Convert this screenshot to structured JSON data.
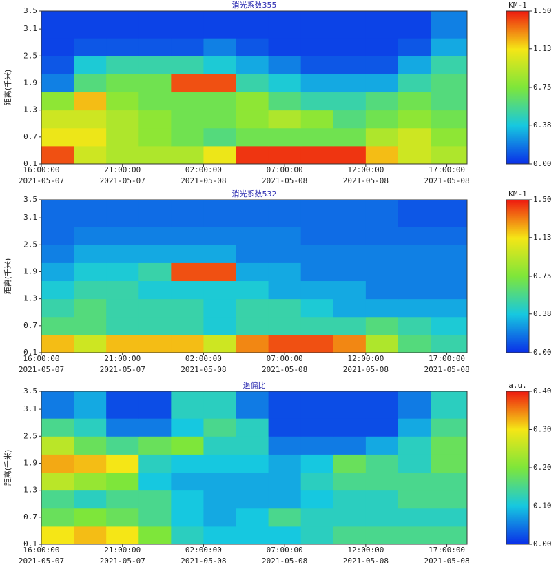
{
  "chart_data": [
    {
      "type": "heatmap",
      "title": "消光系数355",
      "ylabel": "距离(千米)",
      "zlabel": "KM-1",
      "colormap": [
        "#0a2ee8",
        "#16c8e0",
        "#7ee63a",
        "#f5e616",
        "#ee1a10"
      ],
      "x_edges": [
        "2021-05-07T16:00:00",
        "2021-05-07T18:00:00",
        "2021-05-07T20:00:00",
        "2021-05-07T22:00:00",
        "2021-05-08T00:00:00",
        "2021-05-08T02:00:00",
        "2021-05-08T04:00:00",
        "2021-05-08T06:00:00",
        "2021-05-08T08:00:00",
        "2021-05-08T10:00:00",
        "2021-05-08T12:00:00",
        "2021-05-08T14:00:00",
        "2021-05-08T16:00:00",
        "2021-05-08T18:15:00"
      ],
      "y_edges": [
        0.1,
        0.5,
        0.9,
        1.3,
        1.7,
        2.1,
        2.5,
        2.9,
        3.5
      ],
      "values": [
        [
          1.4,
          1.0,
          0.9,
          0.9,
          0.9,
          1.1,
          1.45,
          1.45,
          1.45,
          1.45,
          1.2,
          1.0,
          0.9
        ],
        [
          1.1,
          1.1,
          0.9,
          0.8,
          0.7,
          0.6,
          0.7,
          0.7,
          0.7,
          0.7,
          0.9,
          1.0,
          0.8
        ],
        [
          1.0,
          1.0,
          0.9,
          0.8,
          0.7,
          0.7,
          0.8,
          0.9,
          0.8,
          0.6,
          0.7,
          0.8,
          0.7
        ],
        [
          0.8,
          1.2,
          0.8,
          0.7,
          0.7,
          0.7,
          0.8,
          0.6,
          0.5,
          0.5,
          0.6,
          0.7,
          0.6
        ],
        [
          0.2,
          0.6,
          0.7,
          0.7,
          1.4,
          1.4,
          0.5,
          0.4,
          0.3,
          0.3,
          0.3,
          0.5,
          0.6
        ],
        [
          0.1,
          0.4,
          0.5,
          0.5,
          0.5,
          0.4,
          0.3,
          0.2,
          0.1,
          0.1,
          0.1,
          0.3,
          0.5
        ],
        [
          0.05,
          0.1,
          0.1,
          0.1,
          0.1,
          0.2,
          0.1,
          0.05,
          0.05,
          0.05,
          0.05,
          0.1,
          0.3
        ],
        [
          0.05,
          0.05,
          0.05,
          0.05,
          0.05,
          0.05,
          0.05,
          0.05,
          0.05,
          0.05,
          0.05,
          0.05,
          0.2
        ]
      ],
      "xlim": [
        "2021-05-07T16:00:00",
        "2021-05-08T18:15:00"
      ],
      "xticks": [
        {
          "value": "2021-05-07T16:00:00",
          "label": [
            "16:00:00",
            "2021-05-07"
          ]
        },
        {
          "value": "2021-05-07T21:00:00",
          "label": [
            "21:00:00",
            "2021-05-07"
          ]
        },
        {
          "value": "2021-05-08T02:00:00",
          "label": [
            "02:00:00",
            "2021-05-08"
          ]
        },
        {
          "value": "2021-05-08T07:00:00",
          "label": [
            "07:00:00",
            "2021-05-08"
          ]
        },
        {
          "value": "2021-05-08T12:00:00",
          "label": [
            "12:00:00",
            "2021-05-08"
          ]
        },
        {
          "value": "2021-05-08T17:00:00",
          "label": [
            "17:00:00",
            "2021-05-08"
          ]
        }
      ],
      "ylim": [
        0.1,
        3.5
      ],
      "yticks": [
        0.1,
        0.7,
        1.3,
        1.9,
        2.5,
        3.1,
        3.5
      ],
      "zlim": [
        0,
        1.5
      ],
      "zticks": [
        {
          "value": 0,
          "label": "0.00"
        },
        {
          "value": 0.38,
          "label": "0.38"
        },
        {
          "value": 0.75,
          "label": "0.75"
        },
        {
          "value": 1.13,
          "label": "1.13"
        },
        {
          "value": 1.5,
          "label": "1.50"
        }
      ]
    },
    {
      "type": "heatmap",
      "title": "消光系数532",
      "ylabel": "距离(千米)",
      "zlabel": "KM-1",
      "colormap": [
        "#0a2ee8",
        "#16c8e0",
        "#7ee63a",
        "#f5e616",
        "#ee1a10"
      ],
      "x_edges": [
        "2021-05-07T16:00:00",
        "2021-05-07T18:00:00",
        "2021-05-07T20:00:00",
        "2021-05-07T22:00:00",
        "2021-05-08T00:00:00",
        "2021-05-08T02:00:00",
        "2021-05-08T04:00:00",
        "2021-05-08T06:00:00",
        "2021-05-08T08:00:00",
        "2021-05-08T10:00:00",
        "2021-05-08T12:00:00",
        "2021-05-08T14:00:00",
        "2021-05-08T16:00:00",
        "2021-05-08T18:15:00"
      ],
      "y_edges": [
        0.1,
        0.5,
        0.9,
        1.3,
        1.7,
        2.1,
        2.5,
        2.9,
        3.5
      ],
      "values": [
        [
          1.2,
          1.0,
          1.2,
          1.2,
          1.2,
          1.0,
          1.3,
          1.4,
          1.4,
          1.3,
          0.9,
          0.6,
          0.5
        ],
        [
          0.6,
          0.6,
          0.5,
          0.5,
          0.5,
          0.4,
          0.5,
          0.5,
          0.5,
          0.5,
          0.6,
          0.5,
          0.4
        ],
        [
          0.5,
          0.6,
          0.5,
          0.5,
          0.5,
          0.4,
          0.5,
          0.5,
          0.4,
          0.3,
          0.3,
          0.3,
          0.3
        ],
        [
          0.4,
          0.5,
          0.5,
          0.4,
          0.4,
          0.4,
          0.4,
          0.3,
          0.3,
          0.3,
          0.2,
          0.2,
          0.2
        ],
        [
          0.3,
          0.4,
          0.4,
          0.5,
          1.4,
          1.4,
          0.3,
          0.3,
          0.2,
          0.2,
          0.2,
          0.2,
          0.2
        ],
        [
          0.2,
          0.3,
          0.3,
          0.3,
          0.3,
          0.3,
          0.2,
          0.2,
          0.2,
          0.2,
          0.2,
          0.2,
          0.2
        ],
        [
          0.15,
          0.2,
          0.2,
          0.2,
          0.2,
          0.2,
          0.2,
          0.2,
          0.15,
          0.15,
          0.15,
          0.15,
          0.15
        ],
        [
          0.15,
          0.15,
          0.15,
          0.15,
          0.15,
          0.15,
          0.15,
          0.15,
          0.15,
          0.15,
          0.15,
          0.1,
          0.1
        ]
      ],
      "xlim": [
        "2021-05-07T16:00:00",
        "2021-05-08T18:15:00"
      ],
      "xticks": [
        {
          "value": "2021-05-07T16:00:00",
          "label": [
            "16:00:00",
            "2021-05-07"
          ]
        },
        {
          "value": "2021-05-07T21:00:00",
          "label": [
            "21:00:00",
            "2021-05-07"
          ]
        },
        {
          "value": "2021-05-08T02:00:00",
          "label": [
            "02:00:00",
            "2021-05-08"
          ]
        },
        {
          "value": "2021-05-08T07:00:00",
          "label": [
            "07:00:00",
            "2021-05-08"
          ]
        },
        {
          "value": "2021-05-08T12:00:00",
          "label": [
            "12:00:00",
            "2021-05-08"
          ]
        },
        {
          "value": "2021-05-08T17:00:00",
          "label": [
            "17:00:00",
            "2021-05-08"
          ]
        }
      ],
      "ylim": [
        0.1,
        3.5
      ],
      "yticks": [
        0.1,
        0.7,
        1.3,
        1.9,
        2.5,
        3.1,
        3.5
      ],
      "zlim": [
        0,
        1.5
      ],
      "zticks": [
        {
          "value": 0,
          "label": "0.00"
        },
        {
          "value": 0.38,
          "label": "0.38"
        },
        {
          "value": 0.75,
          "label": "0.75"
        },
        {
          "value": 1.13,
          "label": "1.13"
        },
        {
          "value": 1.5,
          "label": "1.50"
        }
      ]
    },
    {
      "type": "heatmap",
      "title": "退偏比",
      "ylabel": "距离(千米)",
      "zlabel": "a.u.",
      "colormap": [
        "#0a2ee8",
        "#16c8e0",
        "#7ee63a",
        "#f5e616",
        "#ee1a10"
      ],
      "x_edges": [
        "2021-05-07T16:00:00",
        "2021-05-07T18:00:00",
        "2021-05-07T20:00:00",
        "2021-05-07T22:00:00",
        "2021-05-08T00:00:00",
        "2021-05-08T02:00:00",
        "2021-05-08T04:00:00",
        "2021-05-08T06:00:00",
        "2021-05-08T08:00:00",
        "2021-05-08T10:00:00",
        "2021-05-08T12:00:00",
        "2021-05-08T14:00:00",
        "2021-05-08T16:00:00",
        "2021-05-08T18:15:00"
      ],
      "y_edges": [
        0.1,
        0.5,
        0.9,
        1.3,
        1.7,
        2.1,
        2.5,
        2.9,
        3.5
      ],
      "values": [
        [
          0.3,
          0.32,
          0.3,
          0.2,
          0.12,
          0.1,
          0.1,
          0.1,
          0.12,
          0.15,
          0.15,
          0.15,
          0.15
        ],
        [
          0.18,
          0.2,
          0.18,
          0.15,
          0.1,
          0.08,
          0.1,
          0.15,
          0.12,
          0.12,
          0.12,
          0.12,
          0.12
        ],
        [
          0.15,
          0.12,
          0.15,
          0.15,
          0.1,
          0.08,
          0.08,
          0.08,
          0.1,
          0.12,
          0.12,
          0.15,
          0.15
        ],
        [
          0.25,
          0.22,
          0.2,
          0.1,
          0.08,
          0.08,
          0.08,
          0.08,
          0.12,
          0.15,
          0.15,
          0.15,
          0.15
        ],
        [
          0.33,
          0.32,
          0.3,
          0.12,
          0.1,
          0.1,
          0.1,
          0.08,
          0.1,
          0.18,
          0.15,
          0.12,
          0.18
        ],
        [
          0.25,
          0.18,
          0.15,
          0.18,
          0.2,
          0.12,
          0.12,
          0.05,
          0.05,
          0.05,
          0.08,
          0.12,
          0.18
        ],
        [
          0.15,
          0.12,
          0.05,
          0.05,
          0.1,
          0.15,
          0.12,
          0.02,
          0.02,
          0.02,
          0.02,
          0.08,
          0.15
        ],
        [
          0.05,
          0.08,
          0.02,
          0.02,
          0.12,
          0.12,
          0.05,
          0.02,
          0.02,
          0.02,
          0.02,
          0.05,
          0.12
        ]
      ],
      "xlim": [
        "2021-05-07T16:00:00",
        "2021-05-08T18:15:00"
      ],
      "xticks": [
        {
          "value": "2021-05-07T16:00:00",
          "label": [
            "16:00:00",
            "2021-05-07"
          ]
        },
        {
          "value": "2021-05-07T21:00:00",
          "label": [
            "21:00:00",
            "2021-05-07"
          ]
        },
        {
          "value": "2021-05-08T02:00:00",
          "label": [
            "02:00:00",
            "2021-05-08"
          ]
        },
        {
          "value": "2021-05-08T07:00:00",
          "label": [
            "07:00:00",
            "2021-05-08"
          ]
        },
        {
          "value": "2021-05-08T12:00:00",
          "label": [
            "12:00:00",
            "2021-05-08"
          ]
        },
        {
          "value": "2021-05-08T17:00:00",
          "label": [
            "17:00:00",
            "2021-05-08"
          ]
        }
      ],
      "ylim": [
        0.1,
        3.5
      ],
      "yticks": [
        0.1,
        0.7,
        1.3,
        1.9,
        2.5,
        3.1,
        3.5
      ],
      "zlim": [
        0,
        0.4
      ],
      "zticks": [
        {
          "value": 0,
          "label": "0.00"
        },
        {
          "value": 0.1,
          "label": "0.10"
        },
        {
          "value": 0.2,
          "label": "0.20"
        },
        {
          "value": 0.3,
          "label": "0.30"
        },
        {
          "value": 0.4,
          "label": "0.40"
        }
      ]
    }
  ]
}
